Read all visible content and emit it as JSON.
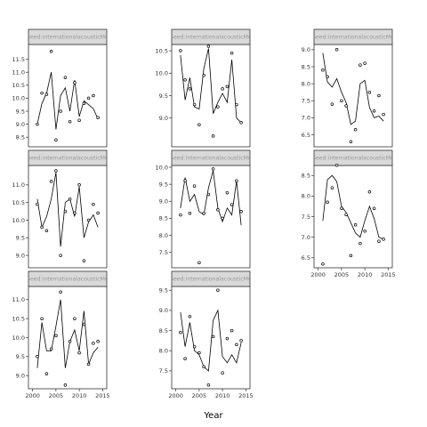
{
  "chart_data": {
    "type": "scatter",
    "title": "",
    "xlabel": "Year",
    "ylabel": "",
    "grid": false,
    "panels": [
      {
        "strip": "Seed:internationalacousticMu",
        "ylim": [
          8.2,
          12.0
        ],
        "yticks": [
          8.5,
          9.0,
          9.5,
          10.0,
          10.5,
          11.0,
          11.5
        ],
        "points": [
          [
            2001,
            9.0
          ],
          [
            2002,
            10.2
          ],
          [
            2003,
            10.15
          ],
          [
            2004,
            11.8
          ],
          [
            2005,
            8.4
          ],
          [
            2006,
            9.5
          ],
          [
            2007,
            10.8
          ],
          [
            2008,
            9.1
          ],
          [
            2009,
            10.6
          ],
          [
            2010,
            9.15
          ],
          [
            2011,
            9.8
          ],
          [
            2012,
            10.0
          ],
          [
            2013,
            10.1
          ],
          [
            2014,
            9.25
          ]
        ],
        "line": [
          [
            2001,
            9.0
          ],
          [
            2002,
            9.8
          ],
          [
            2003,
            10.2
          ],
          [
            2004,
            11.0
          ],
          [
            2005,
            8.8
          ],
          [
            2006,
            10.1
          ],
          [
            2007,
            10.4
          ],
          [
            2008,
            9.5
          ],
          [
            2009,
            10.7
          ],
          [
            2010,
            9.3
          ],
          [
            2011,
            9.9
          ],
          [
            2012,
            9.75
          ],
          [
            2013,
            9.6
          ],
          [
            2014,
            9.2
          ]
        ]
      },
      {
        "strip": "Seed:internationalacousticMu",
        "ylim": [
          8.4,
          10.6
        ],
        "yticks": [
          9.0,
          9.5,
          10.0,
          10.5
        ],
        "points": [
          [
            2001,
            10.5
          ],
          [
            2002,
            9.85
          ],
          [
            2003,
            9.65
          ],
          [
            2004,
            9.3
          ],
          [
            2005,
            8.85
          ],
          [
            2006,
            9.95
          ],
          [
            2007,
            10.6
          ],
          [
            2008,
            8.6
          ],
          [
            2009,
            9.25
          ],
          [
            2010,
            9.65
          ],
          [
            2011,
            9.7
          ],
          [
            2012,
            10.45
          ],
          [
            2013,
            9.3
          ],
          [
            2014,
            8.9
          ]
        ],
        "line": [
          [
            2001,
            10.4
          ],
          [
            2002,
            9.4
          ],
          [
            2003,
            9.9
          ],
          [
            2004,
            9.25
          ],
          [
            2005,
            9.2
          ],
          [
            2006,
            10.1
          ],
          [
            2007,
            10.55
          ],
          [
            2008,
            9.1
          ],
          [
            2009,
            9.35
          ],
          [
            2010,
            9.55
          ],
          [
            2011,
            9.35
          ],
          [
            2012,
            10.3
          ],
          [
            2013,
            9.0
          ],
          [
            2014,
            8.9
          ]
        ]
      },
      {
        "strip": "Seed:internationalacousticMu",
        "ylim": [
          6.2,
          9.1
        ],
        "yticks": [
          6.5,
          7.0,
          7.5,
          8.0,
          8.5,
          9.0
        ],
        "points": [
          [
            2001,
            8.4
          ],
          [
            2002,
            8.2
          ],
          [
            2003,
            7.4
          ],
          [
            2004,
            9.0
          ],
          [
            2005,
            7.5
          ],
          [
            2006,
            7.35
          ],
          [
            2007,
            6.3
          ],
          [
            2008,
            6.65
          ],
          [
            2009,
            8.55
          ],
          [
            2010,
            8.6
          ],
          [
            2011,
            7.75
          ],
          [
            2012,
            7.2
          ],
          [
            2013,
            7.65
          ],
          [
            2014,
            7.1
          ]
        ],
        "line": [
          [
            2001,
            8.9
          ],
          [
            2002,
            8.05
          ],
          [
            2003,
            7.9
          ],
          [
            2004,
            8.15
          ],
          [
            2005,
            7.75
          ],
          [
            2006,
            7.45
          ],
          [
            2007,
            6.8
          ],
          [
            2008,
            6.9
          ],
          [
            2009,
            8.0
          ],
          [
            2010,
            8.1
          ],
          [
            2011,
            7.3
          ],
          [
            2012,
            7.0
          ],
          [
            2013,
            7.05
          ],
          [
            2014,
            6.9
          ]
        ]
      },
      {
        "strip": "Seed:internationalacousticMu",
        "ylim": [
          8.7,
          11.5
        ],
        "yticks": [
          9.0,
          9.5,
          10.0,
          10.5,
          11.0
        ],
        "points": [
          [
            2001,
            10.45
          ],
          [
            2002,
            9.8
          ],
          [
            2003,
            9.7
          ],
          [
            2004,
            11.1
          ],
          [
            2005,
            11.4
          ],
          [
            2006,
            9.0
          ],
          [
            2007,
            10.25
          ],
          [
            2008,
            10.6
          ],
          [
            2009,
            10.2
          ],
          [
            2010,
            11.0
          ],
          [
            2011,
            8.85
          ],
          [
            2012,
            10.0
          ],
          [
            2013,
            10.45
          ],
          [
            2014,
            10.2
          ]
        ],
        "line": [
          [
            2001,
            10.6
          ],
          [
            2002,
            9.8
          ],
          [
            2003,
            10.1
          ],
          [
            2004,
            10.6
          ],
          [
            2005,
            11.35
          ],
          [
            2006,
            9.25
          ],
          [
            2007,
            10.5
          ],
          [
            2008,
            10.6
          ],
          [
            2009,
            10.1
          ],
          [
            2010,
            10.95
          ],
          [
            2011,
            9.5
          ],
          [
            2012,
            9.95
          ],
          [
            2013,
            10.15
          ],
          [
            2014,
            9.8
          ]
        ]
      },
      {
        "strip": "Seed:internationalacousticMu",
        "ylim": [
          7.1,
          10.0
        ],
        "yticks": [
          7.5,
          8.0,
          8.5,
          9.0,
          9.5,
          10.0
        ],
        "points": [
          [
            2001,
            8.6
          ],
          [
            2002,
            9.6
          ],
          [
            2003,
            8.65
          ],
          [
            2004,
            9.45
          ],
          [
            2005,
            7.2
          ],
          [
            2006,
            8.65
          ],
          [
            2007,
            9.2
          ],
          [
            2008,
            9.95
          ],
          [
            2009,
            8.75
          ],
          [
            2010,
            8.5
          ],
          [
            2011,
            9.25
          ],
          [
            2012,
            8.9
          ],
          [
            2013,
            9.6
          ],
          [
            2014,
            8.7
          ]
        ],
        "line": [
          [
            2001,
            8.8
          ],
          [
            2002,
            9.7
          ],
          [
            2003,
            9.0
          ],
          [
            2004,
            9.2
          ],
          [
            2005,
            8.7
          ],
          [
            2006,
            8.6
          ],
          [
            2007,
            9.4
          ],
          [
            2008,
            9.9
          ],
          [
            2009,
            8.8
          ],
          [
            2010,
            8.4
          ],
          [
            2011,
            8.8
          ],
          [
            2012,
            8.6
          ],
          [
            2013,
            9.6
          ],
          [
            2014,
            8.3
          ]
        ]
      },
      {
        "strip": "Seed:internationalacousticMu",
        "ylim": [
          6.3,
          8.7
        ],
        "yticks": [
          6.5,
          7.0,
          7.5,
          8.0,
          8.5
        ],
        "points": [
          [
            2001,
            6.35
          ],
          [
            2002,
            7.85
          ],
          [
            2003,
            8.2
          ],
          [
            2004,
            8.75
          ],
          [
            2005,
            7.7
          ],
          [
            2006,
            7.55
          ],
          [
            2007,
            6.55
          ],
          [
            2008,
            7.3
          ],
          [
            2009,
            6.85
          ],
          [
            2010,
            7.15
          ],
          [
            2011,
            8.1
          ],
          [
            2012,
            7.7
          ],
          [
            2013,
            6.9
          ],
          [
            2014,
            6.95
          ]
        ],
        "line": [
          [
            2001,
            7.4
          ],
          [
            2002,
            8.4
          ],
          [
            2003,
            8.5
          ],
          [
            2004,
            8.35
          ],
          [
            2005,
            7.75
          ],
          [
            2006,
            7.6
          ],
          [
            2007,
            7.35
          ],
          [
            2008,
            7.1
          ],
          [
            2009,
            7.0
          ],
          [
            2010,
            7.4
          ],
          [
            2011,
            7.75
          ],
          [
            2012,
            7.45
          ],
          [
            2013,
            7.0
          ],
          [
            2014,
            6.95
          ]
        ]
      },
      {
        "strip": "Seed:internationalacousticMu",
        "ylim": [
          8.7,
          11.3
        ],
        "yticks": [
          9.0,
          9.5,
          10.0,
          10.5,
          11.0
        ],
        "points": [
          [
            2001,
            9.5
          ],
          [
            2002,
            10.5
          ],
          [
            2003,
            9.05
          ],
          [
            2004,
            9.7
          ],
          [
            2005,
            10.05
          ],
          [
            2006,
            11.2
          ],
          [
            2007,
            8.75
          ],
          [
            2008,
            9.9
          ],
          [
            2009,
            10.5
          ],
          [
            2010,
            9.6
          ],
          [
            2011,
            10.35
          ],
          [
            2012,
            9.3
          ],
          [
            2013,
            9.85
          ],
          [
            2014,
            9.9
          ]
        ],
        "line": [
          [
            2001,
            9.2
          ],
          [
            2002,
            10.4
          ],
          [
            2003,
            9.65
          ],
          [
            2004,
            9.65
          ],
          [
            2005,
            10.3
          ],
          [
            2006,
            11.0
          ],
          [
            2007,
            9.2
          ],
          [
            2008,
            9.9
          ],
          [
            2009,
            10.2
          ],
          [
            2010,
            9.65
          ],
          [
            2011,
            10.7
          ],
          [
            2012,
            9.3
          ],
          [
            2013,
            9.6
          ],
          [
            2014,
            9.75
          ]
        ]
      },
      {
        "strip": "Seed:internationalacousticMu",
        "ylim": [
          7.1,
          9.55
        ],
        "yticks": [
          7.5,
          8.0,
          8.5,
          9.0,
          9.5
        ],
        "points": [
          [
            2001,
            8.45
          ],
          [
            2002,
            7.8
          ],
          [
            2003,
            8.85
          ],
          [
            2004,
            8.1
          ],
          [
            2005,
            7.95
          ],
          [
            2006,
            7.6
          ],
          [
            2007,
            7.15
          ],
          [
            2008,
            8.35
          ],
          [
            2009,
            9.5
          ],
          [
            2010,
            7.45
          ],
          [
            2011,
            8.3
          ],
          [
            2012,
            8.5
          ],
          [
            2013,
            8.15
          ],
          [
            2014,
            8.25
          ]
        ],
        "line": [
          [
            2001,
            8.95
          ],
          [
            2002,
            8.1
          ],
          [
            2003,
            8.7
          ],
          [
            2004,
            8.0
          ],
          [
            2005,
            7.9
          ],
          [
            2006,
            7.6
          ],
          [
            2007,
            7.5
          ],
          [
            2008,
            8.75
          ],
          [
            2009,
            9.0
          ],
          [
            2010,
            7.85
          ],
          [
            2011,
            7.7
          ],
          [
            2012,
            7.9
          ],
          [
            2013,
            7.7
          ],
          [
            2014,
            8.2
          ]
        ]
      }
    ],
    "xlim": [
      1999.5,
      2015.5
    ],
    "xticks": [
      2000,
      2005,
      2010,
      2015
    ]
  }
}
